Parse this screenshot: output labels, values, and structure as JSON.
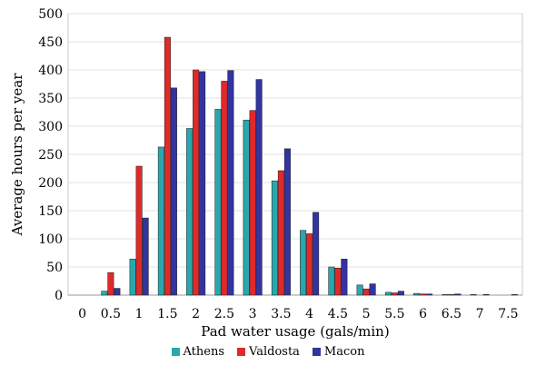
{
  "chart_data": {
    "type": "bar",
    "xlabel": "Pad water usage (gals/min)",
    "ylabel": "Average hours per year",
    "ylim": [
      0,
      500
    ],
    "yticks": [
      "0",
      "50",
      "100",
      "150",
      "200",
      "250",
      "300",
      "350",
      "400",
      "450",
      "500"
    ],
    "categories": [
      "0",
      "0.5",
      "1",
      "1.5",
      "2",
      "2.5",
      "3",
      "3.5",
      "4",
      "4.5",
      "5",
      "5.5",
      "6",
      "6.5",
      "7",
      "7.5"
    ],
    "grid": true,
    "legend_position": "bottom",
    "series": [
      {
        "name": "Athens",
        "color": "#2aa7ad",
        "values": [
          0,
          7,
          64,
          263,
          296,
          330,
          311,
          203,
          115,
          50,
          18,
          5,
          3,
          1,
          1,
          0
        ]
      },
      {
        "name": "Valdosta",
        "color": "#e02a2a",
        "values": [
          0,
          40,
          229,
          458,
          400,
          380,
          328,
          221,
          109,
          48,
          11,
          4,
          2,
          1,
          0,
          0
        ]
      },
      {
        "name": "Macon",
        "color": "#3234a0",
        "values": [
          0,
          12,
          137,
          368,
          397,
          399,
          383,
          260,
          147,
          64,
          20,
          7,
          2,
          2,
          1,
          1
        ]
      }
    ]
  }
}
